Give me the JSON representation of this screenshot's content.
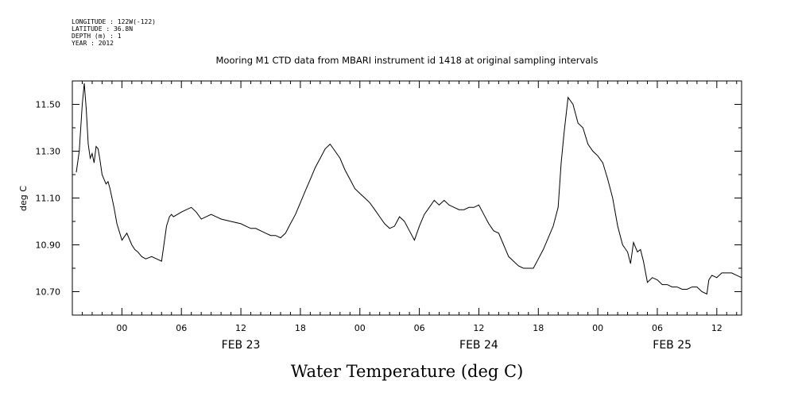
{
  "header": {
    "longitude": "LONGITUDE : 122W(-122)",
    "latitude": "LATITUDE : 36.8N",
    "depth": "DEPTH (m) : 1",
    "year": "YEAR : 2012"
  },
  "chart_data": {
    "type": "line",
    "title": "Mooring M1 CTD data from MBARI instrument id 1418 at original sampling intervals",
    "xlabel": "Water Temperature (deg C)",
    "ylabel": "deg C",
    "x_unit": "hours since 2012-02-23 00:00",
    "xlim": [
      -5,
      62.5
    ],
    "ylim": [
      10.6,
      11.6
    ],
    "y_ticks": [
      "10.70",
      "10.90",
      "11.10",
      "11.30",
      "11.50"
    ],
    "x_tick_labels": [
      {
        "x": 0,
        "label": "00"
      },
      {
        "x": 6,
        "label": "06"
      },
      {
        "x": 12,
        "label": "12"
      },
      {
        "x": 18,
        "label": "18"
      },
      {
        "x": 24,
        "label": "00"
      },
      {
        "x": 30,
        "label": "06"
      },
      {
        "x": 36,
        "label": "12"
      },
      {
        "x": 42,
        "label": "18"
      },
      {
        "x": 48,
        "label": "00"
      },
      {
        "x": 54,
        "label": "06"
      },
      {
        "x": 60,
        "label": "12"
      }
    ],
    "date_labels": [
      {
        "x": 12,
        "label": "FEB 23"
      },
      {
        "x": 36,
        "label": "FEB 24"
      },
      {
        "x": 55.5,
        "label": "FEB 25"
      }
    ],
    "grid": false,
    "series": [
      {
        "x": [
          -4.6,
          -4.3,
          -4.0,
          -3.8,
          -3.6,
          -3.4,
          -3.2,
          -3.0,
          -2.8,
          -2.6,
          -2.4,
          -2.2,
          -2.0,
          -1.8,
          -1.6,
          -1.4,
          -1.2,
          -1.0,
          -0.8,
          -0.5,
          0.0,
          0.5,
          1.0,
          1.3,
          1.6,
          1.8,
          2.0,
          2.4,
          3.0,
          3.5,
          4.0,
          4.5,
          4.8,
          5.0,
          5.2,
          5.6,
          6.0,
          6.5,
          7.0,
          7.5,
          8.0,
          8.5,
          9.0,
          9.5,
          10.0,
          11.0,
          12.0,
          12.5,
          13.0,
          13.5,
          14.0,
          14.5,
          15.0,
          15.5,
          16.0,
          16.5,
          17.0,
          17.5,
          18.0,
          18.5,
          19.0,
          19.5,
          20.0,
          20.5,
          21.0,
          21.5,
          22.0,
          22.5,
          23.0,
          23.5,
          24.0,
          24.5,
          25.0,
          25.5,
          26.0,
          26.5,
          27.0,
          27.5,
          28.0,
          28.5,
          29.0,
          29.5,
          30.0,
          30.5,
          31.0,
          31.5,
          32.0,
          32.5,
          33.0,
          33.5,
          34.0,
          34.5,
          35.0,
          35.5,
          36.0,
          36.5,
          37.0,
          37.5,
          38.0,
          38.5,
          39.0,
          39.5,
          40.0,
          40.5,
          41.0,
          41.5,
          42.0,
          42.5,
          43.0,
          43.5,
          44.0,
          44.3,
          44.6,
          45.0,
          45.5,
          46.0,
          46.5,
          47.0,
          47.5,
          48.0,
          48.5,
          49.0,
          49.5,
          50.0,
          50.5,
          51.0,
          51.3,
          51.6,
          52.0,
          52.3,
          52.6,
          53.0,
          53.5,
          54.0,
          54.5,
          55.0,
          55.5,
          56.0,
          56.5,
          57.0,
          57.5,
          58.0,
          58.5,
          59.0,
          59.2,
          59.5,
          60.0,
          60.5,
          61.0,
          61.5,
          62.0,
          62.5
        ],
        "y": [
          11.21,
          11.3,
          11.5,
          11.59,
          11.48,
          11.33,
          11.27,
          11.29,
          11.25,
          11.32,
          11.31,
          11.26,
          11.2,
          11.18,
          11.16,
          11.17,
          11.14,
          11.1,
          11.06,
          10.99,
          10.92,
          10.95,
          10.9,
          10.88,
          10.87,
          10.86,
          10.85,
          10.84,
          10.85,
          10.84,
          10.83,
          10.98,
          11.02,
          11.03,
          11.02,
          11.03,
          11.04,
          11.05,
          11.06,
          11.04,
          11.01,
          11.02,
          11.03,
          11.02,
          11.01,
          11.0,
          10.99,
          10.98,
          10.97,
          10.97,
          10.96,
          10.95,
          10.94,
          10.94,
          10.93,
          10.95,
          10.99,
          11.03,
          11.08,
          11.13,
          11.18,
          11.23,
          11.27,
          11.31,
          11.33,
          11.3,
          11.27,
          11.22,
          11.18,
          11.14,
          11.12,
          11.1,
          11.08,
          11.05,
          11.02,
          10.99,
          10.97,
          10.98,
          11.02,
          11.0,
          10.96,
          10.92,
          10.98,
          11.03,
          11.06,
          11.09,
          11.07,
          11.09,
          11.07,
          11.06,
          11.05,
          11.05,
          11.06,
          11.06,
          11.07,
          11.03,
          10.99,
          10.96,
          10.95,
          10.9,
          10.85,
          10.83,
          10.81,
          10.8,
          10.8,
          10.8,
          10.84,
          10.88,
          10.93,
          10.98,
          11.06,
          11.25,
          11.38,
          11.53,
          11.5,
          11.42,
          11.4,
          11.33,
          11.3,
          11.28,
          11.25,
          11.18,
          11.1,
          10.98,
          10.9,
          10.87,
          10.82,
          10.91,
          10.87,
          10.88,
          10.83,
          10.74,
          10.76,
          10.75,
          10.73,
          10.73,
          10.72,
          10.72,
          10.71,
          10.71,
          10.72,
          10.72,
          10.7,
          10.69,
          10.75,
          10.77,
          10.76,
          10.78,
          10.78,
          10.78,
          10.77,
          10.76
        ]
      }
    ]
  }
}
